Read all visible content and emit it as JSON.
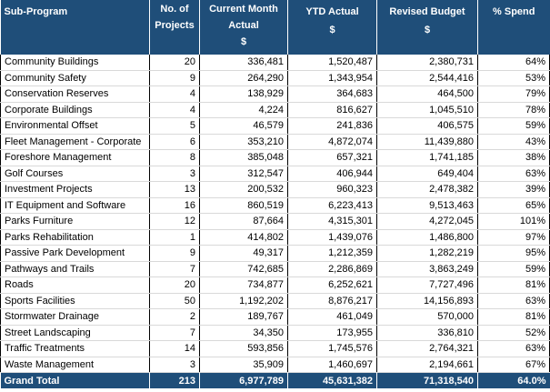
{
  "header": {
    "sub_program": "Sub-Program",
    "projects_l1": "No. of",
    "projects_l2": "Projects",
    "current_l1": "Current Month",
    "current_l2": "Actual",
    "current_unit": "$",
    "ytd": "YTD Actual",
    "ytd_unit": "$",
    "revised": "Revised Budget",
    "revised_unit": "$",
    "spend": "% Spend"
  },
  "rows": [
    {
      "name": "Community Buildings",
      "projects": "20",
      "current": "336,481",
      "ytd": "1,520,487",
      "budget": "2,380,731",
      "spend": "64%"
    },
    {
      "name": "Community Safety",
      "projects": "9",
      "current": "264,290",
      "ytd": "1,343,954",
      "budget": "2,544,416",
      "spend": "53%"
    },
    {
      "name": "Conservation Reserves",
      "projects": "4",
      "current": "138,929",
      "ytd": "364,683",
      "budget": "464,500",
      "spend": "79%"
    },
    {
      "name": "Corporate Buildings",
      "projects": "4",
      "current": "4,224",
      "ytd": "816,627",
      "budget": "1,045,510",
      "spend": "78%"
    },
    {
      "name": "Environmental Offset",
      "projects": "5",
      "current": "46,579",
      "ytd": "241,836",
      "budget": "406,575",
      "spend": "59%"
    },
    {
      "name": "Fleet Management - Corporate",
      "projects": "6",
      "current": "353,210",
      "ytd": "4,872,074",
      "budget": "11,439,880",
      "spend": "43%"
    },
    {
      "name": "Foreshore Management",
      "projects": "8",
      "current": "385,048",
      "ytd": "657,321",
      "budget": "1,741,185",
      "spend": "38%"
    },
    {
      "name": "Golf Courses",
      "projects": "3",
      "current": "312,547",
      "ytd": "406,944",
      "budget": "649,404",
      "spend": "63%"
    },
    {
      "name": "Investment Projects",
      "projects": "13",
      "current": "200,532",
      "ytd": "960,323",
      "budget": "2,478,382",
      "spend": "39%"
    },
    {
      "name": "IT Equipment and Software",
      "projects": "16",
      "current": "860,519",
      "ytd": "6,223,413",
      "budget": "9,513,463",
      "spend": "65%"
    },
    {
      "name": "Parks Furniture",
      "projects": "12",
      "current": "87,664",
      "ytd": "4,315,301",
      "budget": "4,272,045",
      "spend": "101%"
    },
    {
      "name": "Parks Rehabilitation",
      "projects": "1",
      "current": "414,802",
      "ytd": "1,439,076",
      "budget": "1,486,800",
      "spend": "97%"
    },
    {
      "name": "Passive Park Development",
      "projects": "9",
      "current": "49,317",
      "ytd": "1,212,359",
      "budget": "1,282,219",
      "spend": "95%"
    },
    {
      "name": "Pathways and Trails",
      "projects": "7",
      "current": "742,685",
      "ytd": "2,286,869",
      "budget": "3,863,249",
      "spend": "59%"
    },
    {
      "name": "Roads",
      "projects": "20",
      "current": "734,877",
      "ytd": "6,252,621",
      "budget": "7,727,496",
      "spend": "81%"
    },
    {
      "name": "Sports Facilities",
      "projects": "50",
      "current": "1,192,202",
      "ytd": "8,876,217",
      "budget": "14,156,893",
      "spend": "63%"
    },
    {
      "name": "Stormwater Drainage",
      "projects": "2",
      "current": "189,767",
      "ytd": "461,049",
      "budget": "570,000",
      "spend": "81%"
    },
    {
      "name": "Street Landscaping",
      "projects": "7",
      "current": "34,350",
      "ytd": "173,955",
      "budget": "336,810",
      "spend": "52%"
    },
    {
      "name": "Traffic Treatments",
      "projects": "14",
      "current": "593,856",
      "ytd": "1,745,576",
      "budget": "2,764,321",
      "spend": "63%"
    },
    {
      "name": "Waste Management",
      "projects": "3",
      "current": "35,909",
      "ytd": "1,460,697",
      "budget": "2,194,661",
      "spend": "67%"
    }
  ],
  "total": {
    "label": "Grand Total",
    "projects": "213",
    "current": "6,977,789",
    "ytd": "45,631,382",
    "budget": "71,318,540",
    "spend": "64.0%"
  },
  "colors": {
    "header_bg": "#1f4e79",
    "header_text": "#ffffff"
  }
}
